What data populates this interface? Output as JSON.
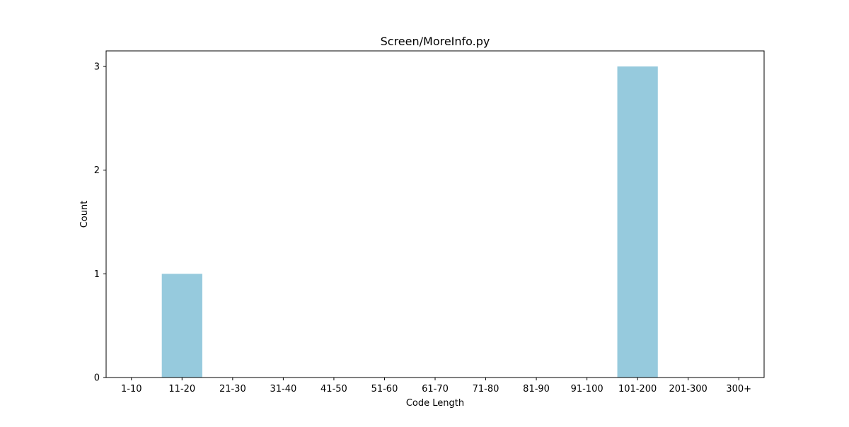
{
  "chart_data": {
    "type": "bar",
    "title": "Screen/MoreInfo.py",
    "xlabel": "Code Length",
    "ylabel": "Count",
    "categories": [
      "1-10",
      "11-20",
      "21-30",
      "31-40",
      "41-50",
      "51-60",
      "61-70",
      "71-80",
      "81-90",
      "91-100",
      "101-200",
      "201-300",
      "300+"
    ],
    "values": [
      0,
      1,
      0,
      0,
      0,
      0,
      0,
      0,
      0,
      0,
      3,
      0,
      0
    ],
    "ylim": [
      0,
      3.15
    ],
    "yticks": [
      0,
      1,
      2,
      3
    ],
    "grid": false,
    "legend": "none",
    "bar_color": "#96cadd"
  }
}
